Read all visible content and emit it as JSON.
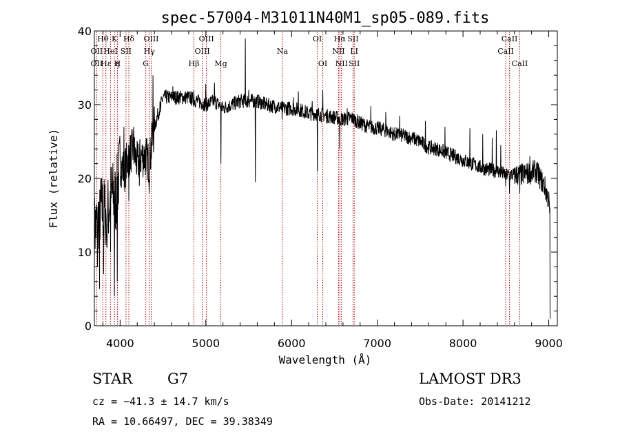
{
  "chart_data": {
    "type": "line",
    "title": "spec-57004-M31011N40M1_sp05-089.fits",
    "xlabel": "Wavelength (Å)",
    "ylabel": "Flux (relative)",
    "xlim": [
      3700,
      9100
    ],
    "ylim": [
      0,
      40
    ],
    "xticks": [
      4000,
      5000,
      6000,
      7000,
      8000,
      9000
    ],
    "yticks": [
      0,
      10,
      20,
      30,
      40
    ],
    "continuum": [
      [
        3700,
        13
      ],
      [
        3780,
        16
      ],
      [
        3850,
        15
      ],
      [
        3900,
        18
      ],
      [
        3950,
        17
      ],
      [
        4000,
        22
      ],
      [
        4050,
        21
      ],
      [
        4100,
        23
      ],
      [
        4150,
        24
      ],
      [
        4200,
        22
      ],
      [
        4250,
        23
      ],
      [
        4300,
        23
      ],
      [
        4340,
        22
      ],
      [
        4400,
        27
      ],
      [
        4450,
        29
      ],
      [
        4500,
        31
      ],
      [
        4600,
        31
      ],
      [
        4700,
        31
      ],
      [
        4800,
        31
      ],
      [
        4900,
        30.5
      ],
      [
        5000,
        30
      ],
      [
        5100,
        30.5
      ],
      [
        5200,
        29.5
      ],
      [
        5300,
        30
      ],
      [
        5400,
        30.5
      ],
      [
        5500,
        30.5
      ],
      [
        5600,
        30.5
      ],
      [
        5700,
        30
      ],
      [
        5800,
        29.8
      ],
      [
        5900,
        29.5
      ],
      [
        6000,
        29.5
      ],
      [
        6100,
        29.3
      ],
      [
        6200,
        28.8
      ],
      [
        6300,
        28.8
      ],
      [
        6400,
        28.5
      ],
      [
        6500,
        28.3
      ],
      [
        6600,
        28
      ],
      [
        6700,
        28.2
      ],
      [
        6800,
        27.5
      ],
      [
        6900,
        27
      ],
      [
        7000,
        26.8
      ],
      [
        7100,
        26.5
      ],
      [
        7200,
        26
      ],
      [
        7300,
        25.8
      ],
      [
        7400,
        25.5
      ],
      [
        7500,
        25
      ],
      [
        7600,
        24.2
      ],
      [
        7700,
        24
      ],
      [
        7800,
        23.5
      ],
      [
        7900,
        23
      ],
      [
        8000,
        22.5
      ],
      [
        8100,
        22
      ],
      [
        8200,
        21.5
      ],
      [
        8300,
        21.2
      ],
      [
        8400,
        21
      ],
      [
        8500,
        20.5
      ],
      [
        8600,
        20.5
      ],
      [
        8700,
        20.5
      ],
      [
        8800,
        20.8
      ],
      [
        8850,
        21
      ],
      [
        8900,
        20
      ],
      [
        8950,
        19
      ],
      [
        9000,
        17
      ],
      [
        9020,
        14
      ]
    ],
    "features": [
      [
        3933,
        4
      ],
      [
        3968,
        6
      ],
      [
        3889,
        10
      ],
      [
        4102,
        17
      ],
      [
        4226,
        19
      ],
      [
        4300,
        21
      ],
      [
        4340,
        18
      ],
      [
        5175,
        22
      ],
      [
        5890,
        28
      ],
      [
        6563,
        24
      ],
      [
        8498,
        19
      ],
      [
        8542,
        18
      ],
      [
        8662,
        18
      ],
      [
        4383,
        34
      ],
      [
        5461,
        39
      ],
      [
        5577,
        19.5
      ],
      [
        6300,
        21
      ],
      [
        6363,
        32
      ],
      [
        5270,
        30
      ],
      [
        3735,
        8
      ],
      [
        3760,
        5
      ],
      [
        3808,
        7
      ],
      [
        3843,
        11
      ],
      [
        4046,
        27
      ],
      [
        4160,
        27
      ],
      [
        4370,
        27
      ],
      [
        4475,
        29
      ],
      [
        4615,
        32.5
      ],
      [
        4860,
        32
      ],
      [
        5000,
        32.8
      ],
      [
        5100,
        33
      ],
      [
        5500,
        32
      ],
      [
        5690,
        31
      ],
      [
        6020,
        31
      ],
      [
        6080,
        31.8
      ],
      [
        6240,
        30.5
      ],
      [
        6650,
        29.5
      ],
      [
        6925,
        29.8
      ],
      [
        7100,
        29
      ],
      [
        7260,
        28.5
      ],
      [
        7560,
        27.8
      ],
      [
        7790,
        27
      ],
      [
        8080,
        26.8
      ],
      [
        8230,
        26
      ],
      [
        8340,
        25.5
      ],
      [
        8390,
        26.5
      ],
      [
        8440,
        24.5
      ],
      [
        8780,
        23
      ],
      [
        8880,
        22
      ]
    ],
    "lines": [
      {
        "label": "OII",
        "wave": 3727,
        "row": 2
      },
      {
        "label": "Hθ",
        "wave": 3798,
        "row": 0
      },
      {
        "label": "OII",
        "wave": 3727,
        "row": 1
      },
      {
        "label": "Hε",
        "wave": 3835,
        "row": 2
      },
      {
        "label": "K",
        "wave": 3934,
        "row": 0
      },
      {
        "label": "HeI",
        "wave": 3889,
        "row": 1
      },
      {
        "label": "η",
        "wave": 3970,
        "row": 2
      },
      {
        "label": "H",
        "wave": 3969,
        "row": 2
      },
      {
        "label": "Hδ",
        "wave": 4102,
        "row": 0
      },
      {
        "label": "SII",
        "wave": 4069,
        "row": 1
      },
      {
        "label": "G",
        "wave": 4300,
        "row": 2
      },
      {
        "label": "OIII",
        "wave": 4363,
        "row": 0
      },
      {
        "label": "Hγ",
        "wave": 4341,
        "row": 1
      },
      {
        "label": "Hβ",
        "wave": 4861,
        "row": 2
      },
      {
        "label": "OIII",
        "wave": 5007,
        "row": 0
      },
      {
        "label": "OIII",
        "wave": 4959,
        "row": 1
      },
      {
        "label": "Mg",
        "wave": 5175,
        "row": 2
      },
      {
        "label": "Na",
        "wave": 5893,
        "row": 1
      },
      {
        "label": "OI",
        "wave": 6300,
        "row": 0
      },
      {
        "label": "OI",
        "wave": 6364,
        "row": 2
      },
      {
        "label": "Hα",
        "wave": 6563,
        "row": 0
      },
      {
        "label": "NII",
        "wave": 6548,
        "row": 1
      },
      {
        "label": "NII",
        "wave": 6583,
        "row": 2
      },
      {
        "label": "SII",
        "wave": 6717,
        "row": 0
      },
      {
        "label": "LI",
        "wave": 6731,
        "row": 1
      },
      {
        "label": "SII",
        "wave": 6731,
        "row": 2
      },
      {
        "label": "CaII",
        "wave": 8498,
        "row": 1
      },
      {
        "label": "CaII",
        "wave": 8542,
        "row": 0
      },
      {
        "label": "CaII",
        "wave": 8662,
        "row": 2
      }
    ]
  },
  "info": {
    "object_class": "STAR",
    "subclass": "G7",
    "survey": "LAMOST DR3",
    "cz": "cz = −41.3 ± 14.7 km/s",
    "obs_date": "Obs-Date: 20141212",
    "coords": "RA =  10.66497, DEC =  39.38349"
  },
  "colors": {
    "spectrum": "#000000",
    "line_marker": "#c00000"
  }
}
